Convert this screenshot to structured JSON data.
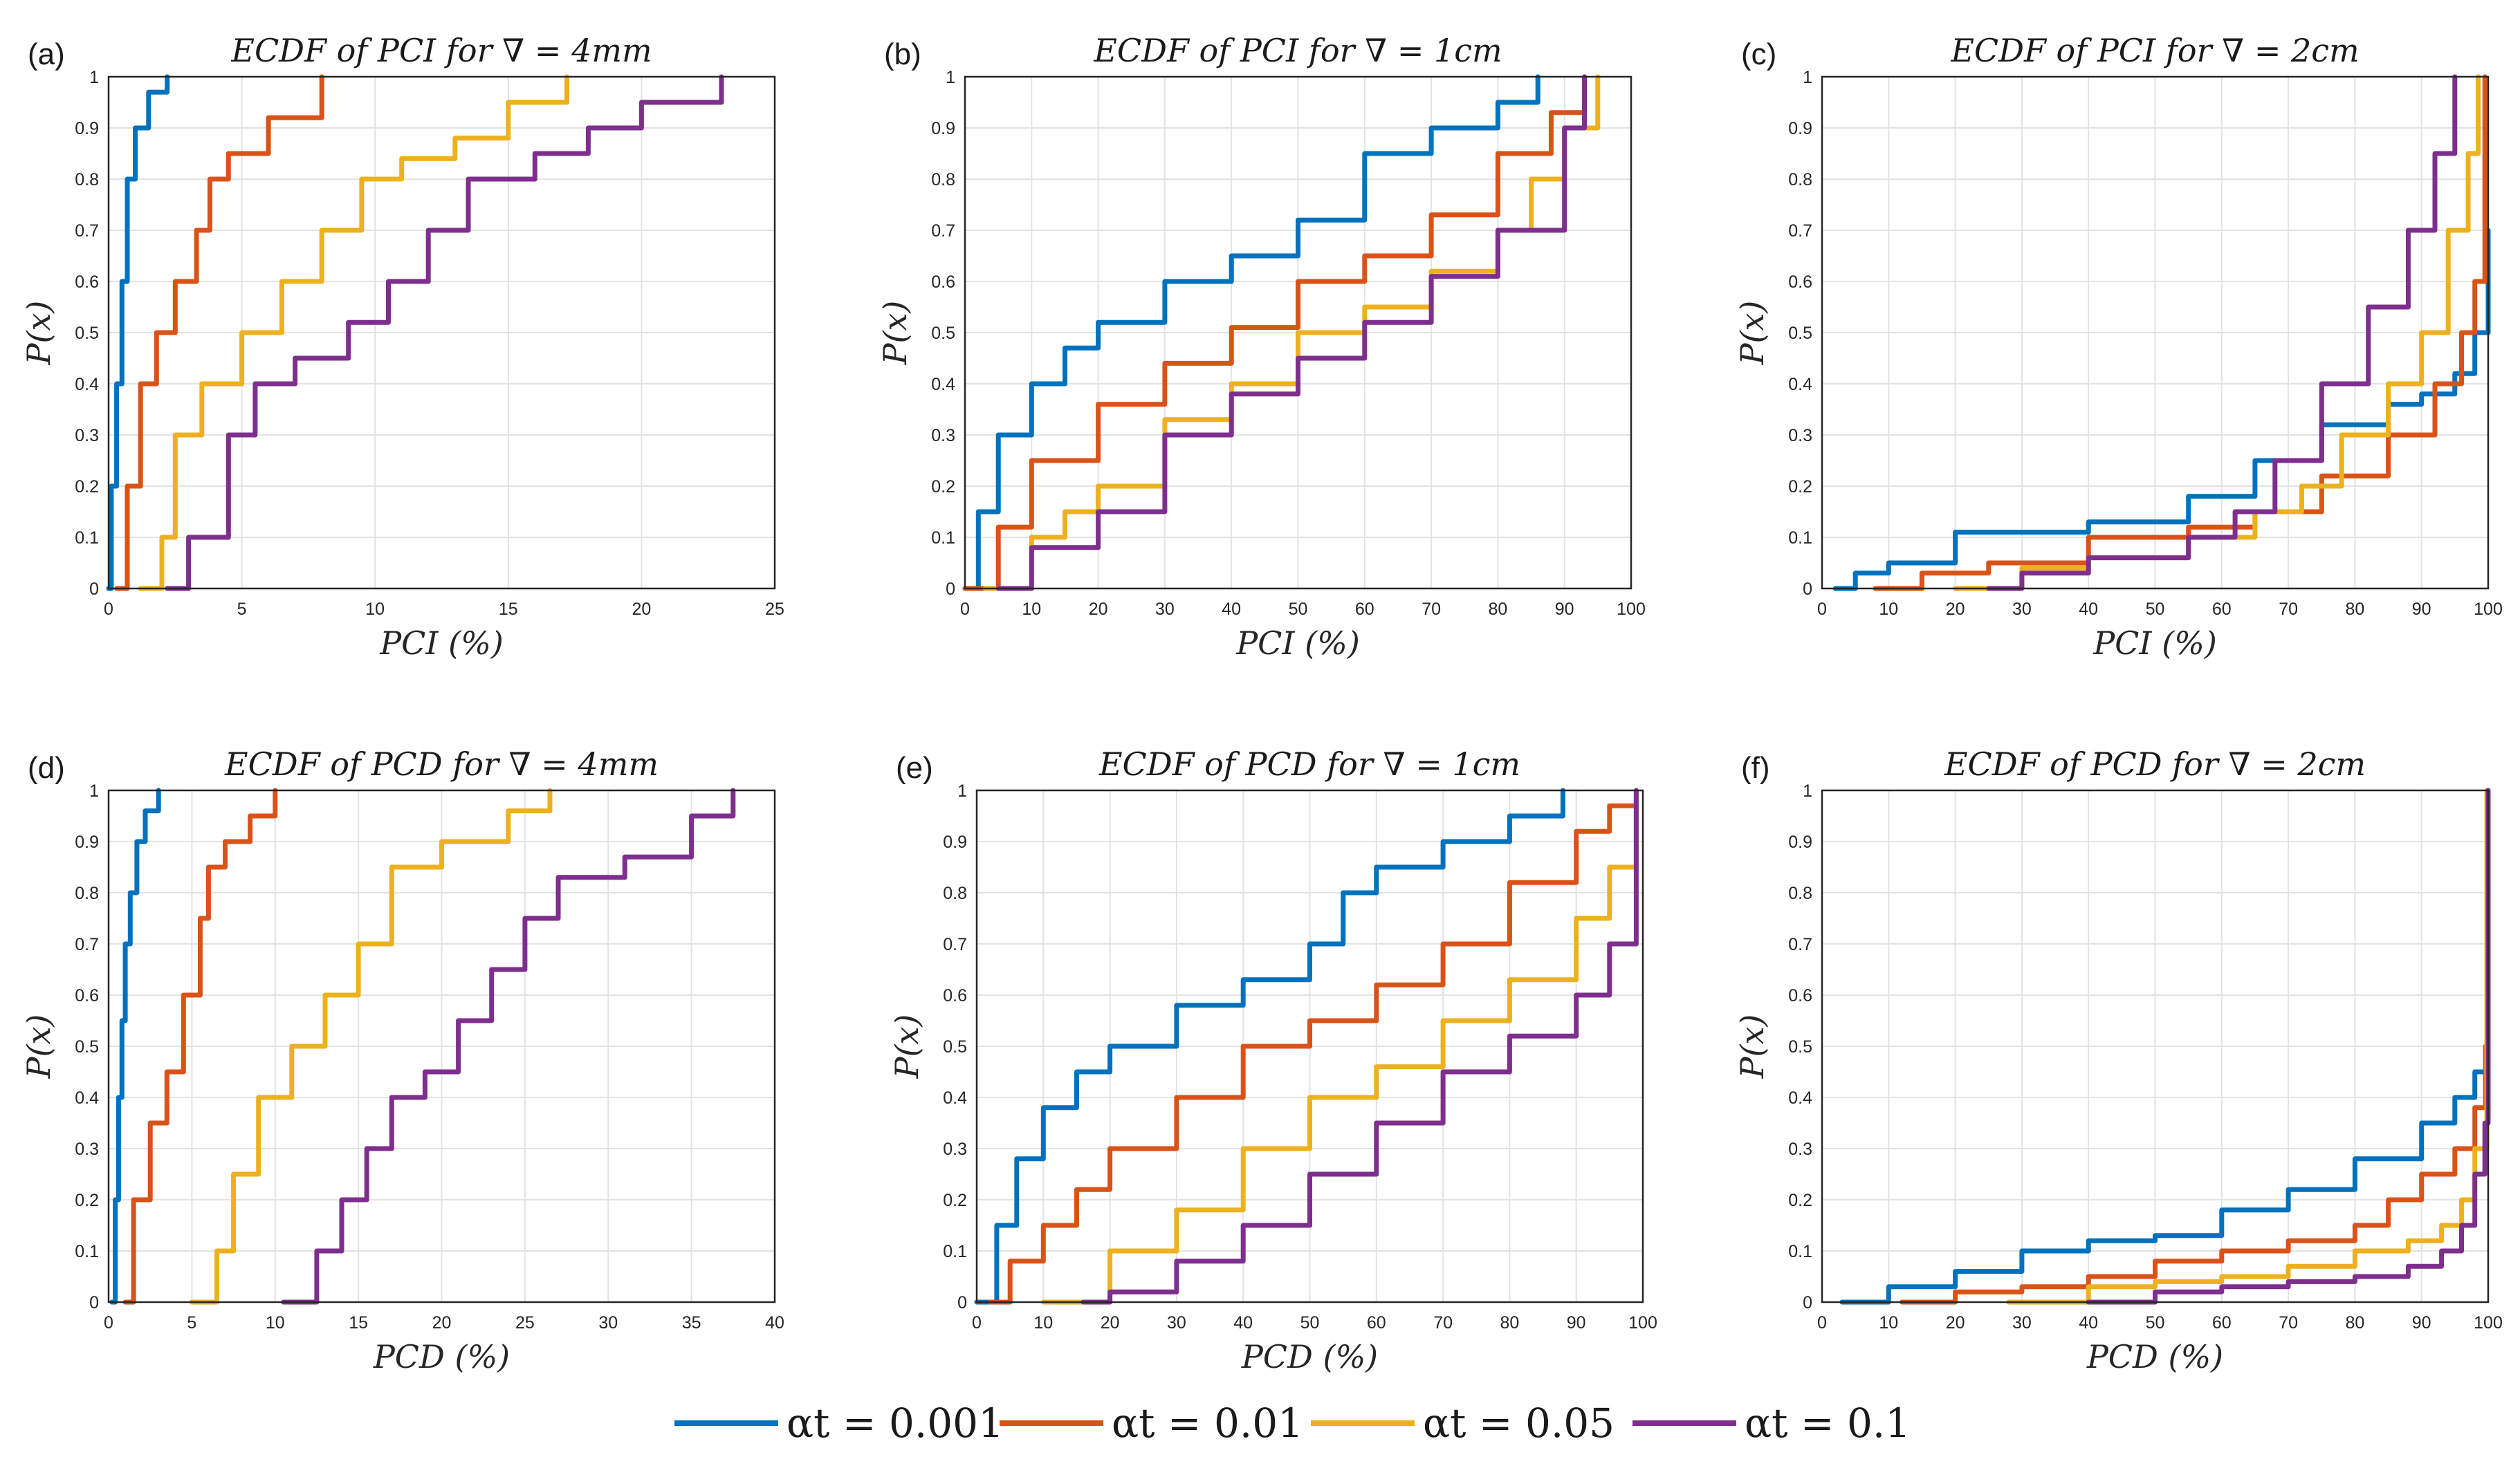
{
  "colors": {
    "alpha_0001": "#0072BD",
    "alpha_001": "#D95319",
    "alpha_005": "#EDB120",
    "alpha_01": "#7E2F8E"
  },
  "legend": [
    {
      "label": "αt = 0.001",
      "color": "#0072BD"
    },
    {
      "label": "αt = 0.01",
      "color": "#D95319"
    },
    {
      "label": "αt = 0.05",
      "color": "#EDB120"
    },
    {
      "label": "αt = 0.1",
      "color": "#7E2F8E"
    }
  ],
  "chart_data": [
    {
      "panel": "(a)",
      "type": "line",
      "title": "ECDF of PCI for ∇ = 4mm",
      "xlabel": "PCI (%)",
      "ylabel": "P(x)",
      "xlim": [
        0,
        25
      ],
      "ylim": [
        0,
        1
      ],
      "grid": true,
      "xticks": [
        "0",
        "5",
        "10",
        "15",
        "20",
        "25"
      ],
      "yticks": [
        "0",
        "0.1",
        "0.2",
        "0.3",
        "0.4",
        "0.5",
        "0.6",
        "0.7",
        "0.8",
        "0.9",
        "1"
      ],
      "series": [
        {
          "name": "αt = 0.001",
          "x": [
            0,
            0.1,
            0.3,
            0.5,
            0.7,
            1.0,
            1.5,
            2.2
          ],
          "y": [
            0,
            0.2,
            0.4,
            0.6,
            0.8,
            0.9,
            0.97,
            1
          ]
        },
        {
          "name": "αt = 0.01",
          "x": [
            0.3,
            0.7,
            1.2,
            1.8,
            2.5,
            3.3,
            3.8,
            4.5,
            6.0,
            8.0
          ],
          "y": [
            0,
            0.2,
            0.4,
            0.5,
            0.6,
            0.7,
            0.8,
            0.85,
            0.92,
            1
          ]
        },
        {
          "name": "αt = 0.05",
          "x": [
            1.2,
            2.0,
            2.5,
            3.5,
            5.0,
            6.5,
            8.0,
            9.5,
            11.0,
            13.0,
            15.0,
            17.2
          ],
          "y": [
            0,
            0.1,
            0.3,
            0.4,
            0.5,
            0.6,
            0.7,
            0.8,
            0.84,
            0.88,
            0.95,
            1
          ]
        },
        {
          "name": "αt = 0.1",
          "x": [
            2.2,
            3.0,
            4.5,
            5.5,
            7.0,
            9.0,
            10.5,
            12.0,
            13.5,
            16.0,
            18.0,
            20.0,
            23.0
          ],
          "y": [
            0,
            0.1,
            0.3,
            0.4,
            0.45,
            0.52,
            0.6,
            0.7,
            0.8,
            0.85,
            0.9,
            0.95,
            1
          ]
        }
      ]
    },
    {
      "panel": "(b)",
      "type": "line",
      "title": "ECDF of PCI for ∇ = 1cm",
      "xlabel": "PCI (%)",
      "ylabel": "P(x)",
      "xlim": [
        0,
        100
      ],
      "ylim": [
        0,
        1
      ],
      "grid": true,
      "xticks": [
        "0",
        "10",
        "20",
        "30",
        "40",
        "50",
        "60",
        "70",
        "80",
        "90",
        "100"
      ],
      "yticks": [
        "0",
        "0.1",
        "0.2",
        "0.3",
        "0.4",
        "0.5",
        "0.6",
        "0.7",
        "0.8",
        "0.9",
        "1"
      ],
      "series": [
        {
          "name": "αt = 0.001",
          "x": [
            0,
            2,
            5,
            10,
            15,
            20,
            30,
            40,
            50,
            60,
            70,
            80,
            86
          ],
          "y": [
            0,
            0.15,
            0.3,
            0.4,
            0.47,
            0.52,
            0.6,
            0.65,
            0.72,
            0.85,
            0.9,
            0.95,
            1
          ]
        },
        {
          "name": "αt = 0.01",
          "x": [
            0,
            5,
            10,
            20,
            30,
            40,
            50,
            60,
            70,
            80,
            88,
            93
          ],
          "y": [
            0,
            0.12,
            0.25,
            0.36,
            0.44,
            0.51,
            0.6,
            0.65,
            0.73,
            0.85,
            0.93,
            1
          ]
        },
        {
          "name": "αt = 0.05",
          "x": [
            3,
            10,
            15,
            20,
            30,
            40,
            50,
            60,
            70,
            80,
            85,
            90,
            95
          ],
          "y": [
            0,
            0.1,
            0.15,
            0.2,
            0.33,
            0.4,
            0.5,
            0.55,
            0.62,
            0.7,
            0.8,
            0.9,
            1
          ]
        },
        {
          "name": "αt = 0.1",
          "x": [
            5,
            10,
            20,
            30,
            40,
            50,
            60,
            70,
            80,
            90,
            93
          ],
          "y": [
            0,
            0.08,
            0.15,
            0.3,
            0.38,
            0.45,
            0.52,
            0.61,
            0.7,
            0.9,
            1
          ]
        }
      ]
    },
    {
      "panel": "(c)",
      "type": "line",
      "title": "ECDF of PCI for ∇ = 2cm",
      "xlabel": "PCI (%)",
      "ylabel": "P(x)",
      "xlim": [
        0,
        100
      ],
      "ylim": [
        0,
        1
      ],
      "grid": true,
      "xticks": [
        "0",
        "10",
        "20",
        "30",
        "40",
        "50",
        "60",
        "70",
        "80",
        "90",
        "100"
      ],
      "yticks": [
        "0",
        "0.1",
        "0.2",
        "0.3",
        "0.4",
        "0.5",
        "0.6",
        "0.7",
        "0.8",
        "0.9",
        "1"
      ],
      "series": [
        {
          "name": "αt = 0.001",
          "x": [
            2,
            5,
            10,
            20,
            40,
            55,
            65,
            75,
            85,
            90,
            95,
            98,
            100
          ],
          "y": [
            0,
            0.03,
            0.05,
            0.11,
            0.13,
            0.18,
            0.25,
            0.32,
            0.36,
            0.38,
            0.42,
            0.5,
            0.7
          ]
        },
        {
          "name": "αt = 0.01",
          "x": [
            8,
            15,
            25,
            40,
            55,
            65,
            75,
            85,
            92,
            96,
            98,
            99.5
          ],
          "y": [
            0,
            0.03,
            0.05,
            0.1,
            0.12,
            0.15,
            0.22,
            0.3,
            0.4,
            0.5,
            0.6,
            1
          ]
        },
        {
          "name": "αt = 0.05",
          "x": [
            20,
            30,
            40,
            55,
            65,
            72,
            78,
            85,
            90,
            94,
            97,
            98.5
          ],
          "y": [
            0,
            0.04,
            0.06,
            0.1,
            0.15,
            0.2,
            0.3,
            0.4,
            0.5,
            0.7,
            0.85,
            1
          ]
        },
        {
          "name": "αt = 0.1",
          "x": [
            25,
            30,
            40,
            55,
            62,
            68,
            75,
            82,
            88,
            92,
            95
          ],
          "y": [
            0,
            0.03,
            0.06,
            0.1,
            0.15,
            0.25,
            0.4,
            0.55,
            0.7,
            0.85,
            1
          ]
        }
      ]
    },
    {
      "panel": "(d)",
      "type": "line",
      "title": "ECDF of PCD for ∇ = 4mm",
      "xlabel": "PCD (%)",
      "ylabel": "P(x)",
      "xlim": [
        0,
        40
      ],
      "ylim": [
        0,
        1
      ],
      "grid": true,
      "xticks": [
        "0",
        "5",
        "10",
        "15",
        "20",
        "25",
        "30",
        "35",
        "40"
      ],
      "yticks": [
        "0",
        "0.1",
        "0.2",
        "0.3",
        "0.4",
        "0.5",
        "0.6",
        "0.7",
        "0.8",
        "0.9",
        "1"
      ],
      "series": [
        {
          "name": "αt = 0.001",
          "x": [
            0.2,
            0.4,
            0.6,
            0.8,
            1.0,
            1.3,
            1.7,
            2.2,
            3.0
          ],
          "y": [
            0,
            0.2,
            0.4,
            0.55,
            0.7,
            0.8,
            0.9,
            0.96,
            1
          ]
        },
        {
          "name": "αt = 0.01",
          "x": [
            1.0,
            1.5,
            2.5,
            3.5,
            4.5,
            5.5,
            6.0,
            7.0,
            8.5,
            10.0
          ],
          "y": [
            0,
            0.2,
            0.35,
            0.45,
            0.6,
            0.75,
            0.85,
            0.9,
            0.95,
            1
          ]
        },
        {
          "name": "αt = 0.05",
          "x": [
            5.0,
            6.5,
            7.5,
            9.0,
            11.0,
            13.0,
            15.0,
            17.0,
            20.0,
            24.0,
            26.5
          ],
          "y": [
            0,
            0.1,
            0.25,
            0.4,
            0.5,
            0.6,
            0.7,
            0.85,
            0.9,
            0.96,
            1
          ]
        },
        {
          "name": "αt = 0.1",
          "x": [
            10.5,
            12.5,
            14.0,
            15.5,
            17.0,
            19.0,
            21.0,
            23.0,
            25.0,
            27.0,
            31.0,
            35.0,
            37.5
          ],
          "y": [
            0,
            0.1,
            0.2,
            0.3,
            0.4,
            0.45,
            0.55,
            0.65,
            0.75,
            0.83,
            0.87,
            0.95,
            1
          ]
        }
      ]
    },
    {
      "panel": "(e)",
      "type": "line",
      "title": "ECDF of PCD for ∇ = 1cm",
      "xlabel": "PCD (%)",
      "ylabel": "P(x)",
      "xlim": [
        0,
        100
      ],
      "ylim": [
        0,
        1
      ],
      "grid": true,
      "xticks": [
        "0",
        "10",
        "20",
        "30",
        "40",
        "50",
        "60",
        "70",
        "80",
        "90",
        "100"
      ],
      "yticks": [
        "0",
        "0.1",
        "0.2",
        "0.3",
        "0.4",
        "0.5",
        "0.6",
        "0.7",
        "0.8",
        "0.9",
        "1"
      ],
      "series": [
        {
          "name": "αt = 0.001",
          "x": [
            0,
            3,
            6,
            10,
            15,
            20,
            30,
            40,
            50,
            55,
            60,
            70,
            80,
            88
          ],
          "y": [
            0,
            0.15,
            0.28,
            0.38,
            0.45,
            0.5,
            0.58,
            0.63,
            0.7,
            0.8,
            0.85,
            0.9,
            0.95,
            1
          ]
        },
        {
          "name": "αt = 0.01",
          "x": [
            2,
            5,
            10,
            15,
            20,
            30,
            40,
            50,
            60,
            70,
            80,
            90,
            95,
            99
          ],
          "y": [
            0,
            0.08,
            0.15,
            0.22,
            0.3,
            0.4,
            0.5,
            0.55,
            0.62,
            0.7,
            0.82,
            0.92,
            0.97,
            1
          ]
        },
        {
          "name": "αt = 0.05",
          "x": [
            10,
            20,
            30,
            40,
            50,
            60,
            70,
            80,
            90,
            95,
            99
          ],
          "y": [
            0,
            0.1,
            0.18,
            0.3,
            0.4,
            0.46,
            0.55,
            0.63,
            0.75,
            0.85,
            1
          ]
        },
        {
          "name": "αt = 0.1",
          "x": [
            16,
            20,
            30,
            40,
            50,
            60,
            70,
            80,
            90,
            95,
            99
          ],
          "y": [
            0,
            0.02,
            0.08,
            0.15,
            0.25,
            0.35,
            0.45,
            0.52,
            0.6,
            0.7,
            1
          ]
        }
      ]
    },
    {
      "panel": "(f)",
      "type": "line",
      "title": "ECDF of PCD for ∇ = 2cm",
      "xlabel": "PCD (%)",
      "ylabel": "P(x)",
      "xlim": [
        0,
        100
      ],
      "ylim": [
        0,
        1
      ],
      "grid": true,
      "xticks": [
        "0",
        "10",
        "20",
        "30",
        "40",
        "50",
        "60",
        "70",
        "80",
        "90",
        "100"
      ],
      "yticks": [
        "0",
        "0.1",
        "0.2",
        "0.3",
        "0.4",
        "0.5",
        "0.6",
        "0.7",
        "0.8",
        "0.9",
        "1"
      ],
      "series": [
        {
          "name": "αt = 0.001",
          "x": [
            3,
            10,
            20,
            30,
            40,
            50,
            60,
            70,
            80,
            90,
            95,
            98,
            100
          ],
          "y": [
            0,
            0.03,
            0.06,
            0.1,
            0.12,
            0.13,
            0.18,
            0.22,
            0.28,
            0.35,
            0.4,
            0.45,
            0.6
          ]
        },
        {
          "name": "αt = 0.01",
          "x": [
            12,
            20,
            30,
            40,
            50,
            60,
            70,
            80,
            85,
            90,
            95,
            98,
            99.6
          ],
          "y": [
            0,
            0.02,
            0.03,
            0.05,
            0.08,
            0.1,
            0.12,
            0.15,
            0.2,
            0.25,
            0.3,
            0.38,
            0.5
          ]
        },
        {
          "name": "αt = 0.05",
          "x": [
            28,
            40,
            50,
            60,
            70,
            80,
            88,
            93,
            96,
            98,
            99.8
          ],
          "y": [
            0,
            0.03,
            0.04,
            0.05,
            0.07,
            0.1,
            0.12,
            0.15,
            0.2,
            0.3,
            1
          ]
        },
        {
          "name": "αt = 0.1",
          "x": [
            40,
            50,
            60,
            70,
            80,
            88,
            93,
            96,
            98,
            99.5,
            100
          ],
          "y": [
            0,
            0.02,
            0.03,
            0.04,
            0.05,
            0.07,
            0.1,
            0.15,
            0.25,
            0.35,
            1
          ]
        }
      ]
    }
  ]
}
